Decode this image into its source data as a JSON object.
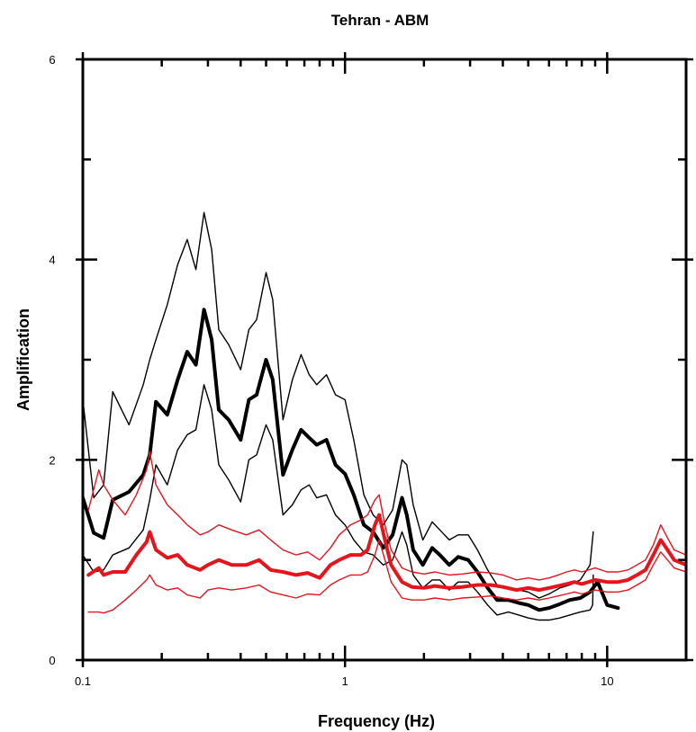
{
  "chart_data": {
    "type": "line",
    "title": "Tehran - ABM",
    "xlabel": "Frequency (Hz)",
    "ylabel": "Amplification",
    "x_scale": "log",
    "xlim": [
      0.1,
      20
    ],
    "ylim": [
      0,
      6
    ],
    "x_tick_labels": [
      "0.1",
      "1",
      "10"
    ],
    "y_tick_labels": [
      "0",
      "2",
      "4",
      "6"
    ],
    "y_ticks": [
      0,
      2,
      4,
      6
    ],
    "x_ticks": [
      0.1,
      1,
      10
    ],
    "grid": false,
    "colors": {
      "black_series": "#000000",
      "red_series": "#e8141c"
    },
    "series": [
      {
        "color": "#000000",
        "role": "black-mean",
        "x": [
          0.1,
          0.11,
          0.12,
          0.13,
          0.15,
          0.17,
          0.18,
          0.19,
          0.21,
          0.23,
          0.25,
          0.27,
          0.29,
          0.31,
          0.33,
          0.36,
          0.4,
          0.43,
          0.46,
          0.5,
          0.53,
          0.58,
          0.63,
          0.68,
          0.73,
          0.78,
          0.85,
          0.92,
          1.0,
          1.08,
          1.18,
          1.28,
          1.4,
          1.52,
          1.65,
          1.72,
          1.82,
          1.98,
          2.15,
          2.3,
          2.5,
          2.7,
          2.95,
          3.2,
          3.5,
          3.8,
          4.2,
          4.6,
          5.0,
          5.5,
          6.0,
          6.6,
          7.2,
          7.9,
          8.6,
          9.2,
          10.0,
          11.0
        ],
        "y": [
          1.62,
          1.27,
          1.22,
          1.6,
          1.68,
          1.85,
          2.05,
          2.58,
          2.45,
          2.8,
          3.08,
          2.95,
          3.5,
          3.2,
          2.5,
          2.4,
          2.2,
          2.6,
          2.65,
          3.0,
          2.8,
          1.85,
          2.1,
          2.3,
          2.22,
          2.15,
          2.2,
          1.95,
          1.86,
          1.65,
          1.35,
          1.28,
          1.12,
          1.25,
          1.62,
          1.45,
          1.1,
          0.95,
          1.12,
          1.05,
          0.95,
          1.03,
          1.0,
          0.88,
          0.72,
          0.6,
          0.6,
          0.57,
          0.55,
          0.5,
          0.52,
          0.56,
          0.6,
          0.62,
          0.68,
          0.78,
          0.55,
          0.52
        ]
      },
      {
        "color": "#000000",
        "role": "black-upper",
        "x": [
          0.1,
          0.11,
          0.12,
          0.13,
          0.15,
          0.17,
          0.18,
          0.19,
          0.21,
          0.23,
          0.25,
          0.27,
          0.29,
          0.31,
          0.33,
          0.36,
          0.4,
          0.43,
          0.46,
          0.5,
          0.53,
          0.58,
          0.63,
          0.68,
          0.73,
          0.78,
          0.85,
          0.92,
          1.0,
          1.08,
          1.18,
          1.28,
          1.4,
          1.52,
          1.65,
          1.72,
          1.82,
          1.98,
          2.15,
          2.3,
          2.5,
          2.7,
          2.95,
          3.2,
          3.5,
          3.8,
          4.2,
          4.6,
          5.0,
          5.5,
          6.0,
          6.6,
          7.2,
          7.9,
          8.6,
          8.85
        ],
        "y": [
          2.6,
          1.62,
          1.75,
          2.68,
          2.35,
          2.75,
          3.0,
          3.2,
          3.55,
          3.95,
          4.2,
          3.9,
          4.47,
          4.1,
          3.3,
          3.15,
          2.9,
          3.3,
          3.4,
          3.87,
          3.6,
          2.4,
          2.8,
          3.05,
          2.85,
          2.75,
          2.85,
          2.65,
          2.6,
          2.2,
          1.65,
          1.45,
          1.35,
          1.5,
          2.0,
          1.95,
          1.55,
          1.2,
          1.38,
          1.3,
          1.2,
          1.25,
          1.25,
          1.1,
          0.9,
          0.75,
          0.72,
          0.7,
          0.68,
          0.62,
          0.66,
          0.72,
          0.75,
          0.8,
          0.95,
          1.28
        ]
      },
      {
        "color": "#000000",
        "role": "black-lower",
        "x": [
          0.1,
          0.11,
          0.12,
          0.13,
          0.15,
          0.17,
          0.18,
          0.19,
          0.21,
          0.23,
          0.25,
          0.27,
          0.29,
          0.31,
          0.33,
          0.36,
          0.4,
          0.43,
          0.46,
          0.5,
          0.53,
          0.58,
          0.63,
          0.68,
          0.73,
          0.78,
          0.85,
          0.92,
          1.0,
          1.08,
          1.18,
          1.28,
          1.4,
          1.52,
          1.65,
          1.72,
          1.82,
          1.98,
          2.15,
          2.3,
          2.5,
          2.7,
          2.95,
          3.2,
          3.5,
          3.8,
          4.2,
          4.6,
          5.0,
          5.5,
          6.0,
          6.6,
          7.2,
          7.9,
          8.6,
          8.8,
          8.85
        ],
        "y": [
          1.05,
          0.88,
          0.9,
          1.05,
          1.12,
          1.3,
          1.6,
          1.95,
          1.75,
          2.1,
          2.25,
          2.3,
          2.75,
          2.5,
          1.95,
          1.8,
          1.58,
          2.0,
          2.05,
          2.35,
          2.2,
          1.45,
          1.55,
          1.7,
          1.75,
          1.62,
          1.65,
          1.45,
          1.35,
          1.2,
          1.08,
          1.05,
          0.95,
          1.0,
          1.28,
          1.15,
          0.85,
          0.72,
          0.8,
          0.8,
          0.7,
          0.78,
          0.78,
          0.68,
          0.55,
          0.45,
          0.48,
          0.45,
          0.42,
          0.4,
          0.4,
          0.42,
          0.45,
          0.48,
          0.5,
          0.55,
          0.85
        ]
      },
      {
        "color": "#e8141c",
        "role": "red-mean",
        "x": [
          0.105,
          0.115,
          0.12,
          0.13,
          0.145,
          0.16,
          0.175,
          0.18,
          0.19,
          0.21,
          0.23,
          0.25,
          0.28,
          0.3,
          0.33,
          0.37,
          0.42,
          0.47,
          0.52,
          0.58,
          0.65,
          0.72,
          0.8,
          0.88,
          0.95,
          1.05,
          1.15,
          1.22,
          1.3,
          1.35,
          1.42,
          1.5,
          1.65,
          1.8,
          2.0,
          2.2,
          2.5,
          2.8,
          3.2,
          3.6,
          4.0,
          4.5,
          5.0,
          5.5,
          6.0,
          6.5,
          7.0,
          7.5,
          8.0,
          9.0,
          10.0,
          11.0,
          12.0,
          13.0,
          14.0,
          15.0,
          16.0,
          17.0,
          18.0,
          20.0
        ],
        "y": [
          0.85,
          0.92,
          0.85,
          0.88,
          0.88,
          1.05,
          1.18,
          1.28,
          1.1,
          1.02,
          1.05,
          0.95,
          0.9,
          0.95,
          1.0,
          0.95,
          0.95,
          1.0,
          0.9,
          0.88,
          0.85,
          0.87,
          0.82,
          0.95,
          1.0,
          1.05,
          1.05,
          1.1,
          1.35,
          1.45,
          1.2,
          0.95,
          0.78,
          0.73,
          0.72,
          0.74,
          0.72,
          0.73,
          0.75,
          0.75,
          0.73,
          0.7,
          0.72,
          0.7,
          0.72,
          0.74,
          0.76,
          0.78,
          0.76,
          0.8,
          0.78,
          0.78,
          0.8,
          0.85,
          0.9,
          1.05,
          1.2,
          1.1,
          1.0,
          0.95
        ]
      },
      {
        "color": "#e8141c",
        "role": "red-upper",
        "x": [
          0.105,
          0.115,
          0.12,
          0.13,
          0.145,
          0.16,
          0.175,
          0.18,
          0.19,
          0.21,
          0.23,
          0.25,
          0.28,
          0.3,
          0.33,
          0.37,
          0.42,
          0.47,
          0.52,
          0.58,
          0.65,
          0.72,
          0.8,
          0.88,
          0.95,
          1.05,
          1.15,
          1.22,
          1.3,
          1.35,
          1.42,
          1.5,
          1.65,
          1.8,
          2.0,
          2.2,
          2.5,
          2.8,
          3.2,
          3.6,
          4.0,
          4.5,
          5.0,
          5.5,
          6.0,
          6.5,
          7.0,
          7.5,
          8.0,
          9.0,
          10.0,
          11.0,
          12.0,
          13.0,
          14.0,
          15.0,
          16.0,
          17.0,
          18.0,
          20.0
        ],
        "y": [
          1.5,
          1.9,
          1.75,
          1.6,
          1.45,
          1.65,
          1.9,
          2.08,
          1.75,
          1.55,
          1.45,
          1.35,
          1.25,
          1.28,
          1.35,
          1.3,
          1.25,
          1.3,
          1.2,
          1.1,
          1.05,
          1.08,
          1.0,
          1.12,
          1.25,
          1.35,
          1.4,
          1.45,
          1.6,
          1.65,
          1.35,
          1.1,
          0.92,
          0.88,
          0.86,
          0.88,
          0.85,
          0.86,
          0.88,
          0.87,
          0.85,
          0.8,
          0.82,
          0.8,
          0.82,
          0.85,
          0.88,
          0.9,
          0.88,
          0.92,
          0.88,
          0.88,
          0.9,
          0.95,
          1.0,
          1.15,
          1.35,
          1.22,
          1.1,
          1.05
        ]
      },
      {
        "color": "#e8141c",
        "role": "red-lower",
        "x": [
          0.105,
          0.115,
          0.12,
          0.13,
          0.145,
          0.16,
          0.175,
          0.18,
          0.19,
          0.21,
          0.23,
          0.25,
          0.28,
          0.3,
          0.33,
          0.37,
          0.42,
          0.47,
          0.52,
          0.58,
          0.65,
          0.72,
          0.8,
          0.88,
          0.95,
          1.05,
          1.15,
          1.22,
          1.3,
          1.35,
          1.42,
          1.5,
          1.65,
          1.8,
          2.0,
          2.2,
          2.5,
          2.8,
          3.2,
          3.6,
          4.0,
          4.5,
          5.0,
          5.5,
          6.0,
          6.5,
          7.0,
          7.5,
          8.0,
          9.0,
          10.0,
          11.0,
          12.0,
          13.0,
          14.0,
          15.0,
          16.0,
          17.0,
          18.0,
          20.0
        ],
        "y": [
          0.48,
          0.48,
          0.47,
          0.5,
          0.6,
          0.7,
          0.8,
          0.85,
          0.75,
          0.7,
          0.72,
          0.65,
          0.62,
          0.7,
          0.72,
          0.7,
          0.72,
          0.75,
          0.68,
          0.65,
          0.62,
          0.66,
          0.65,
          0.75,
          0.8,
          0.85,
          0.85,
          0.88,
          1.05,
          1.2,
          1.0,
          0.78,
          0.62,
          0.6,
          0.6,
          0.62,
          0.6,
          0.62,
          0.63,
          0.64,
          0.62,
          0.6,
          0.62,
          0.6,
          0.62,
          0.64,
          0.66,
          0.68,
          0.66,
          0.7,
          0.68,
          0.68,
          0.7,
          0.75,
          0.8,
          0.95,
          1.08,
          1.0,
          0.92,
          0.88
        ]
      }
    ]
  }
}
